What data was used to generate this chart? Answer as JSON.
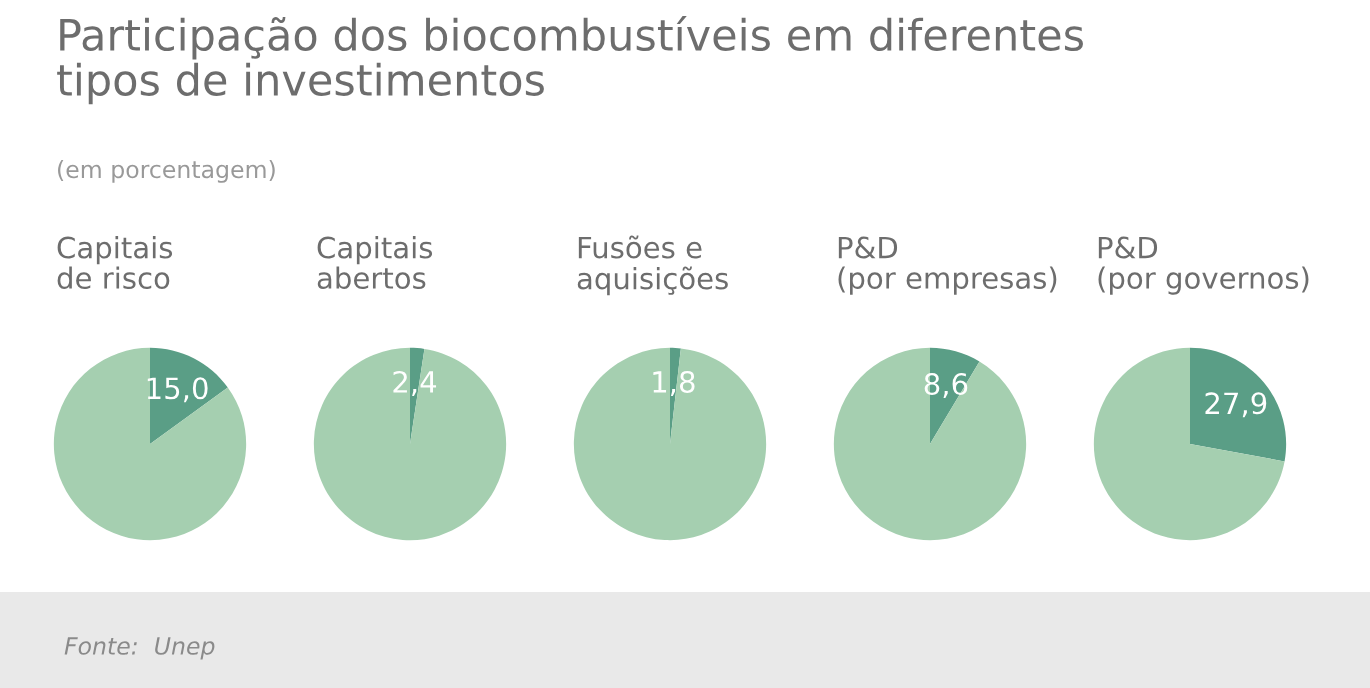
{
  "chart_data": [
    {
      "type": "other",
      "title": "Participação dos biocombustíveis em diferentes\ntipos de investimentos",
      "subtitle": "(em porcentagem)",
      "annotations": [
        "Fonte:  Unep"
      ]
    },
    {
      "type": "pie",
      "title": "Capitais\nde risco",
      "categories": [
        null,
        null
      ],
      "values": [
        15.0,
        85.0
      ],
      "colors": [
        "#5a9e86",
        "#a5cfb0"
      ],
      "value_labels": [
        "15,0",
        null
      ]
    },
    {
      "type": "pie",
      "title": "Capitais\nabertos",
      "categories": [
        null,
        null
      ],
      "values": [
        2.4,
        97.6
      ],
      "colors": [
        "#5a9e86",
        "#a5cfb0"
      ],
      "value_labels": [
        "2,4",
        null
      ]
    },
    {
      "type": "pie",
      "title": "Fusões e\naquisições",
      "categories": [
        null,
        null
      ],
      "values": [
        1.8,
        98.2
      ],
      "colors": [
        "#5a9e86",
        "#a5cfb0"
      ],
      "value_labels": [
        "1,8",
        null
      ]
    },
    {
      "type": "pie",
      "title": "P&D\n(por empresas)",
      "categories": [
        null,
        null
      ],
      "values": [
        8.6,
        91.4
      ],
      "colors": [
        "#5a9e86",
        "#a5cfb0"
      ],
      "value_labels": [
        "8,6",
        null
      ]
    },
    {
      "type": "pie",
      "title": "P&D\n(por governos)",
      "categories": [
        null,
        null
      ],
      "values": [
        27.9,
        72.1
      ],
      "colors": [
        "#5a9e86",
        "#a5cfb0"
      ],
      "value_labels": [
        "27,9",
        null
      ]
    }
  ]
}
